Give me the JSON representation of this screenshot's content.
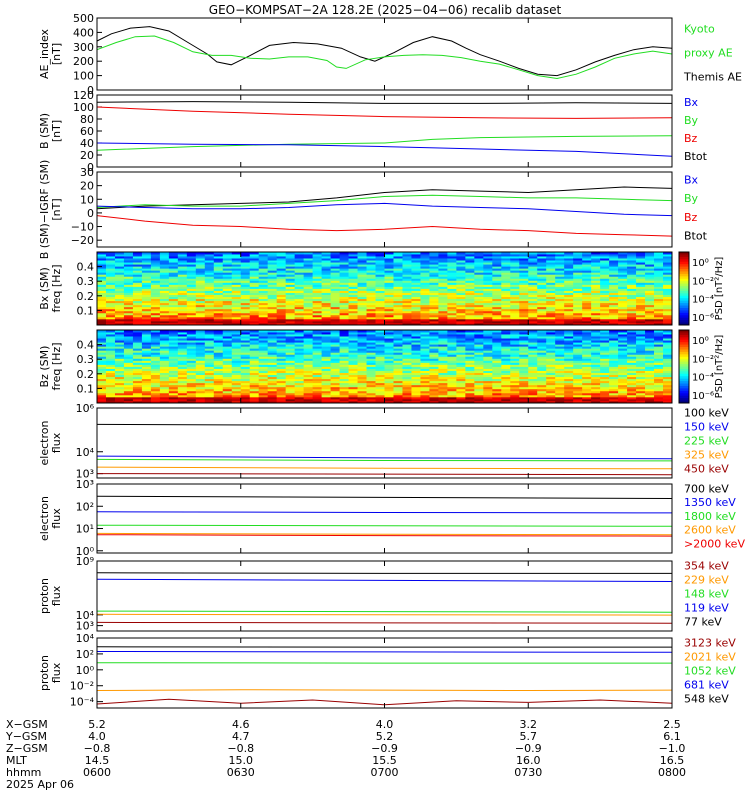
{
  "title": "GEO−KOMPSAT−2A 128.2E (2025−04−06) recalib dataset",
  "chart_data": [
    {
      "id": "ae",
      "type": "line",
      "ylabel": [
        "AE_index",
        "[nT]"
      ],
      "ylim": [
        0,
        500
      ],
      "yticks": [
        0,
        100,
        200,
        300,
        400,
        500
      ],
      "xlim": [
        0,
        120
      ],
      "legend": [
        {
          "text": "Kyoto",
          "color": "#22dd22"
        },
        {
          "text": "proxy AE",
          "color": "#22dd22"
        },
        {
          "text": "Themis AE",
          "color": "#000000"
        }
      ],
      "series": [
        {
          "color": "#000000",
          "x": [
            0,
            3,
            7,
            11,
            15,
            19,
            23,
            25,
            28,
            32,
            36,
            41,
            46,
            51,
            55,
            58,
            62,
            66,
            70,
            74,
            77,
            80,
            84,
            88,
            92,
            96,
            100,
            104,
            108,
            112,
            116,
            120
          ],
          "y": [
            340,
            390,
            430,
            440,
            410,
            330,
            250,
            195,
            175,
            240,
            310,
            330,
            320,
            290,
            230,
            200,
            260,
            330,
            370,
            340,
            290,
            245,
            200,
            150,
            110,
            100,
            140,
            195,
            240,
            280,
            300,
            290
          ]
        },
        {
          "color": "#22dd22",
          "x": [
            0,
            4,
            8,
            12,
            16,
            20,
            24,
            28,
            32,
            36,
            40,
            44,
            48,
            50,
            52,
            56,
            60,
            64,
            68,
            72,
            76,
            80,
            84,
            88,
            92,
            96,
            100,
            104,
            108,
            112,
            116,
            120
          ],
          "y": [
            280,
            330,
            370,
            375,
            330,
            265,
            240,
            240,
            220,
            215,
            230,
            230,
            205,
            160,
            150,
            210,
            230,
            240,
            245,
            240,
            225,
            200,
            180,
            140,
            100,
            80,
            110,
            160,
            220,
            250,
            270,
            250
          ]
        }
      ]
    },
    {
      "id": "b_sm",
      "type": "line",
      "ylabel": [
        "B (SM)",
        "[nT]"
      ],
      "ylim": [
        0,
        120
      ],
      "yticks": [
        0,
        20,
        40,
        60,
        80,
        100,
        120
      ],
      "xlim": [
        0,
        120
      ],
      "legend": [
        {
          "text": "Bx",
          "color": "#0000ee"
        },
        {
          "text": "By",
          "color": "#22dd22"
        },
        {
          "text": "Bz",
          "color": "#ee0000"
        },
        {
          "text": "Btot",
          "color": "#000000"
        }
      ],
      "series": [
        {
          "color": "#000000",
          "x": [
            0,
            20,
            40,
            60,
            80,
            100,
            120
          ],
          "y": [
            108,
            109,
            108,
            106,
            106,
            107,
            106
          ]
        },
        {
          "color": "#ee0000",
          "x": [
            0,
            20,
            40,
            60,
            80,
            100,
            120
          ],
          "y": [
            100,
            93,
            88,
            84,
            82,
            81,
            82
          ]
        },
        {
          "color": "#22dd22",
          "x": [
            0,
            20,
            40,
            60,
            70,
            80,
            100,
            120
          ],
          "y": [
            28,
            34,
            38,
            40,
            46,
            49,
            51,
            52
          ]
        },
        {
          "color": "#0000ee",
          "x": [
            0,
            20,
            40,
            60,
            80,
            100,
            120
          ],
          "y": [
            40,
            38,
            37,
            34,
            30,
            26,
            18
          ]
        }
      ]
    },
    {
      "id": "b_sm_igrf",
      "type": "line",
      "ylabel": [
        "B (SM)−IGRF (SM)",
        "[nT]"
      ],
      "ylim": [
        -25,
        30
      ],
      "yticks": [
        -20,
        -10,
        0,
        10,
        20,
        30
      ],
      "xlim": [
        0,
        120
      ],
      "legend": [
        {
          "text": "Bx",
          "color": "#0000ee"
        },
        {
          "text": "By",
          "color": "#22dd22"
        },
        {
          "text": "Bz",
          "color": "#ee0000"
        },
        {
          "text": "Btot",
          "color": "#000000"
        }
      ],
      "series": [
        {
          "color": "#000000",
          "x": [
            0,
            10,
            20,
            30,
            40,
            50,
            60,
            70,
            80,
            90,
            100,
            110,
            120
          ],
          "y": [
            3,
            5,
            6,
            7,
            8,
            11,
            15,
            17,
            16,
            15,
            17,
            19,
            18
          ]
        },
        {
          "color": "#22dd22",
          "x": [
            0,
            10,
            20,
            30,
            40,
            50,
            60,
            70,
            80,
            90,
            100,
            110,
            120
          ],
          "y": [
            4,
            6,
            5,
            5,
            7,
            9,
            12,
            13,
            12,
            11,
            11,
            10,
            9
          ]
        },
        {
          "color": "#0000ee",
          "x": [
            0,
            10,
            20,
            30,
            40,
            50,
            60,
            70,
            80,
            90,
            100,
            110,
            120
          ],
          "y": [
            5,
            4,
            3,
            3,
            4,
            6,
            7,
            5,
            4,
            3,
            1,
            -1,
            -2
          ]
        },
        {
          "color": "#ee0000",
          "x": [
            0,
            10,
            20,
            30,
            40,
            50,
            60,
            70,
            80,
            90,
            100,
            110,
            120
          ],
          "y": [
            -2,
            -6,
            -9,
            -10,
            -12,
            -13,
            -12,
            -10,
            -12,
            -13,
            -15,
            -16,
            -17
          ]
        }
      ]
    },
    {
      "id": "bx_spec",
      "type": "heatmap",
      "ylabel": [
        "Bx (SM)",
        "freq [Hz]"
      ],
      "ylim": [
        0,
        0.5
      ],
      "yticks": [
        0.1,
        0.2,
        0.3,
        0.4
      ],
      "colorbar_label": "PSD [nT²/Hz]",
      "colorbar_ticks": [
        "10⁰",
        "10⁻²",
        "10⁻⁴",
        "10⁻⁶"
      ],
      "seed": 7
    },
    {
      "id": "bz_spec",
      "type": "heatmap",
      "ylabel": [
        "Bz (SM)",
        "freq [Hz]"
      ],
      "ylim": [
        0,
        0.5
      ],
      "yticks": [
        0.1,
        0.2,
        0.3,
        0.4
      ],
      "colorbar_label": "PSD [nT²/Hz]",
      "colorbar_ticks": [
        "10⁰",
        "10⁻²",
        "10⁻⁴",
        "10⁻⁶"
      ],
      "seed": 13
    },
    {
      "id": "e_flux_low",
      "type": "line",
      "yscale": "log",
      "ylabel": [
        "electron",
        "flux"
      ],
      "ylim_log": [
        2.8,
        6
      ],
      "yticks_log": [
        {
          "exp": 3,
          "label": "10³"
        },
        {
          "exp": 4,
          "label": "10⁴"
        },
        {
          "exp": 6,
          "label": "10⁶"
        }
      ],
      "legend": [
        {
          "text": "100 keV",
          "color": "#000000"
        },
        {
          "text": "150 keV",
          "color": "#0000ee"
        },
        {
          "text": "225 keV",
          "color": "#22dd22"
        },
        {
          "text": "325 keV",
          "color": "#ff9900"
        },
        {
          "text": "450 keV",
          "color": "#990000"
        }
      ],
      "series": [
        {
          "color": "#000000",
          "x": [
            0,
            60,
            120
          ],
          "y": [
            5.25,
            5.2,
            5.12
          ]
        },
        {
          "color": "#0000ee",
          "x": [
            0,
            60,
            120
          ],
          "y": [
            3.8,
            3.72,
            3.68
          ]
        },
        {
          "color": "#22dd22",
          "x": [
            0,
            60,
            120
          ],
          "y": [
            3.65,
            3.6,
            3.58
          ]
        },
        {
          "color": "#ff9900",
          "x": [
            0,
            60,
            120
          ],
          "y": [
            3.3,
            3.25,
            3.22
          ]
        },
        {
          "color": "#990000",
          "x": [
            0,
            60,
            120
          ],
          "y": [
            3.0,
            2.98,
            2.95
          ]
        }
      ]
    },
    {
      "id": "e_flux_high",
      "type": "line",
      "yscale": "log",
      "ylabel": [
        "electron",
        "flux"
      ],
      "ylim_log": [
        -0.1,
        3
      ],
      "yticks_log": [
        {
          "exp": 0,
          "label": "10⁰"
        },
        {
          "exp": 1,
          "label": "10¹"
        },
        {
          "exp": 2,
          "label": "10²"
        },
        {
          "exp": 3,
          "label": "10³"
        }
      ],
      "legend": [
        {
          "text": "700 keV",
          "color": "#000000"
        },
        {
          "text": "1350 keV",
          "color": "#0000ee"
        },
        {
          "text": "1800 keV",
          "color": "#22dd22"
        },
        {
          "text": "2600 keV",
          "color": "#ff9900"
        },
        {
          "text": ">2000 keV",
          "color": "#ee0000"
        }
      ],
      "series": [
        {
          "color": "#000000",
          "x": [
            0,
            60,
            120
          ],
          "y": [
            2.45,
            2.4,
            2.35
          ]
        },
        {
          "color": "#0000ee",
          "x": [
            0,
            60,
            120
          ],
          "y": [
            1.75,
            1.72,
            1.7
          ]
        },
        {
          "color": "#22dd22",
          "x": [
            0,
            60,
            120
          ],
          "y": [
            1.15,
            1.12,
            1.1
          ]
        },
        {
          "color": "#ff9900",
          "x": [
            0,
            60,
            120
          ],
          "y": [
            0.78,
            0.74,
            0.72
          ]
        },
        {
          "color": "#ee0000",
          "x": [
            0,
            60,
            120
          ],
          "y": [
            0.72,
            0.68,
            0.66
          ]
        }
      ]
    },
    {
      "id": "p_flux_low",
      "type": "line",
      "yscale": "log",
      "ylabel": [
        "proton",
        "flux"
      ],
      "ylim_log": [
        2.5,
        9
      ],
      "yticks_log": [
        {
          "exp": 3,
          "label": "10³"
        },
        {
          "exp": 4,
          "label": "10⁴"
        },
        {
          "exp": 9,
          "label": "10⁹"
        }
      ],
      "legend": [
        {
          "text": "354 keV",
          "color": "#990000"
        },
        {
          "text": "229 keV",
          "color": "#ff9900"
        },
        {
          "text": "148 keV",
          "color": "#22dd22"
        },
        {
          "text": "119 keV",
          "color": "#0000ee"
        },
        {
          "text": "77 keV",
          "color": "#000000"
        }
      ],
      "series": [
        {
          "color": "#000000",
          "x": [
            0,
            60,
            120
          ],
          "y": [
            7.9,
            7.85,
            7.85
          ]
        },
        {
          "color": "#0000ee",
          "x": [
            0,
            60,
            120
          ],
          "y": [
            7.3,
            7.2,
            7.1
          ]
        },
        {
          "color": "#22dd22",
          "x": [
            0,
            60,
            120
          ],
          "y": [
            4.35,
            4.3,
            4.25
          ]
        },
        {
          "color": "#ff9900",
          "x": [
            0,
            60,
            120
          ],
          "y": [
            4.05,
            4.0,
            3.98
          ]
        },
        {
          "color": "#990000",
          "x": [
            0,
            60,
            120
          ],
          "y": [
            3.3,
            3.25,
            3.22
          ]
        }
      ]
    },
    {
      "id": "p_flux_high",
      "type": "line",
      "yscale": "log",
      "ylabel": [
        "proton",
        "flux"
      ],
      "ylim_log": [
        -4.8,
        4
      ],
      "yticks_log": [
        {
          "exp": -4,
          "label": "10⁻⁴"
        },
        {
          "exp": -2,
          "label": "10⁻²"
        },
        {
          "exp": 0,
          "label": "10⁰"
        },
        {
          "exp": 2,
          "label": "10²"
        },
        {
          "exp": 4,
          "label": "10⁴"
        }
      ],
      "legend": [
        {
          "text": "3123 keV",
          "color": "#990000"
        },
        {
          "text": "2021 keV",
          "color": "#ff9900"
        },
        {
          "text": "1052 keV",
          "color": "#22dd22"
        },
        {
          "text": "681 keV",
          "color": "#0000ee"
        },
        {
          "text": "548 keV",
          "color": "#000000"
        }
      ],
      "series": [
        {
          "color": "#000000",
          "x": [
            0,
            60,
            120
          ],
          "y": [
            2.9,
            2.85,
            2.85
          ]
        },
        {
          "color": "#0000ee",
          "x": [
            0,
            60,
            120
          ],
          "y": [
            2.3,
            2.25,
            2.2
          ]
        },
        {
          "color": "#22dd22",
          "x": [
            0,
            60,
            120
          ],
          "y": [
            0.9,
            0.85,
            0.85
          ]
        },
        {
          "color": "#ff9900",
          "x": [
            0,
            30,
            60,
            90,
            120
          ],
          "y": [
            -2.6,
            -2.5,
            -2.55,
            -2.6,
            -2.55
          ]
        },
        {
          "color": "#990000",
          "x": [
            0,
            15,
            30,
            45,
            60,
            75,
            90,
            105,
            120
          ],
          "y": [
            -4.3,
            -3.7,
            -4.2,
            -3.8,
            -4.4,
            -3.9,
            -4.1,
            -3.8,
            -4.2
          ]
        }
      ]
    }
  ],
  "x_axis": {
    "row_labels": [
      "X−GSM",
      "Y−GSM",
      "Z−GSM",
      "MLT",
      "hhmm"
    ],
    "date": "2025 Apr 06",
    "columns": [
      {
        "x": 0,
        "values": [
          "5.2",
          "4.0",
          "−0.8",
          "14.5",
          "0600"
        ]
      },
      {
        "x": 30,
        "values": [
          "4.6",
          "4.7",
          "−0.8",
          "15.0",
          "0630"
        ]
      },
      {
        "x": 60,
        "values": [
          "4.0",
          "5.2",
          "−0.9",
          "15.5",
          "0700"
        ]
      },
      {
        "x": 90,
        "values": [
          "3.2",
          "5.7",
          "−0.9",
          "16.0",
          "0730"
        ]
      },
      {
        "x": 120,
        "values": [
          "2.5",
          "6.1",
          "−1.0",
          "16.5",
          "0800"
        ]
      }
    ]
  }
}
